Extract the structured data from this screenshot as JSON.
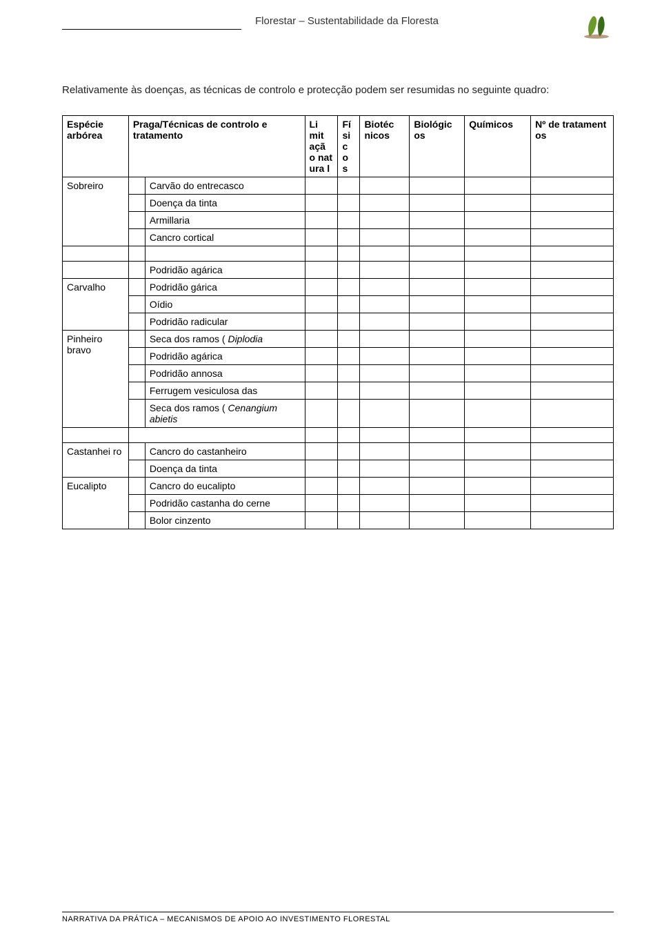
{
  "header": {
    "title": "Florestar – Sustentabilidade da Floresta"
  },
  "intro": "Relativamente às doenças, as técnicas de controlo e protecção podem ser resumidas no seguinte quadro:",
  "table": {
    "columns": {
      "species": "Espécie arbórea",
      "praga": "Praga/Técnicas de controlo e tratamento",
      "lim": "Li mit açã o nat ura l",
      "fis": "Fí si c o s",
      "biot": "Biotéc nicos",
      "biol": "Biológic os",
      "quim": "Químicos",
      "num": "Nº de tratament os"
    },
    "colors": {
      "border": "#000000",
      "text": "#222222",
      "header_bold": true
    },
    "groups": [
      {
        "species": "Sobreiro",
        "rows": [
          {
            "name": "Carvão do entrecasco"
          },
          {
            "name": "Doença da tinta"
          },
          {
            "name": "Armillaria"
          },
          {
            "name": "Cancro cortical"
          }
        ]
      },
      {
        "species": "Carvalho",
        "pre_row": {
          "name": "Podridão agárica"
        },
        "rows": [
          {
            "name": "Podridão gárica"
          },
          {
            "name": "Oídio"
          },
          {
            "name": "Podridão radicular"
          }
        ]
      },
      {
        "species": "Pinheiro bravo",
        "rows": [
          {
            "name": "Seca dos ramos ( Diplodia"
          },
          {
            "name": "Podridão agárica"
          },
          {
            "name": "Podridão annosa"
          },
          {
            "name": "Ferrugem vesiculosa das"
          },
          {
            "name": "Seca dos ramos ( Cenangium abietis"
          }
        ]
      },
      {
        "species": "Castanhei ro",
        "rows": [
          {
            "name": "Cancro do castanheiro"
          },
          {
            "name": "Doença da tinta"
          }
        ]
      },
      {
        "species": "Eucalipto",
        "rows": [
          {
            "name": "Cancro do eucalipto"
          },
          {
            "name": "Podridão castanha do cerne"
          },
          {
            "name": "Bolor cinzento"
          }
        ]
      }
    ]
  },
  "footer": {
    "text": "NARRATIVA DA PRÁTICA – MECANISMOS DE APOIO AO INVESTIMENTO FLORESTAL"
  },
  "italic_words": [
    "Diplodia",
    "Cenangium abietis"
  ]
}
